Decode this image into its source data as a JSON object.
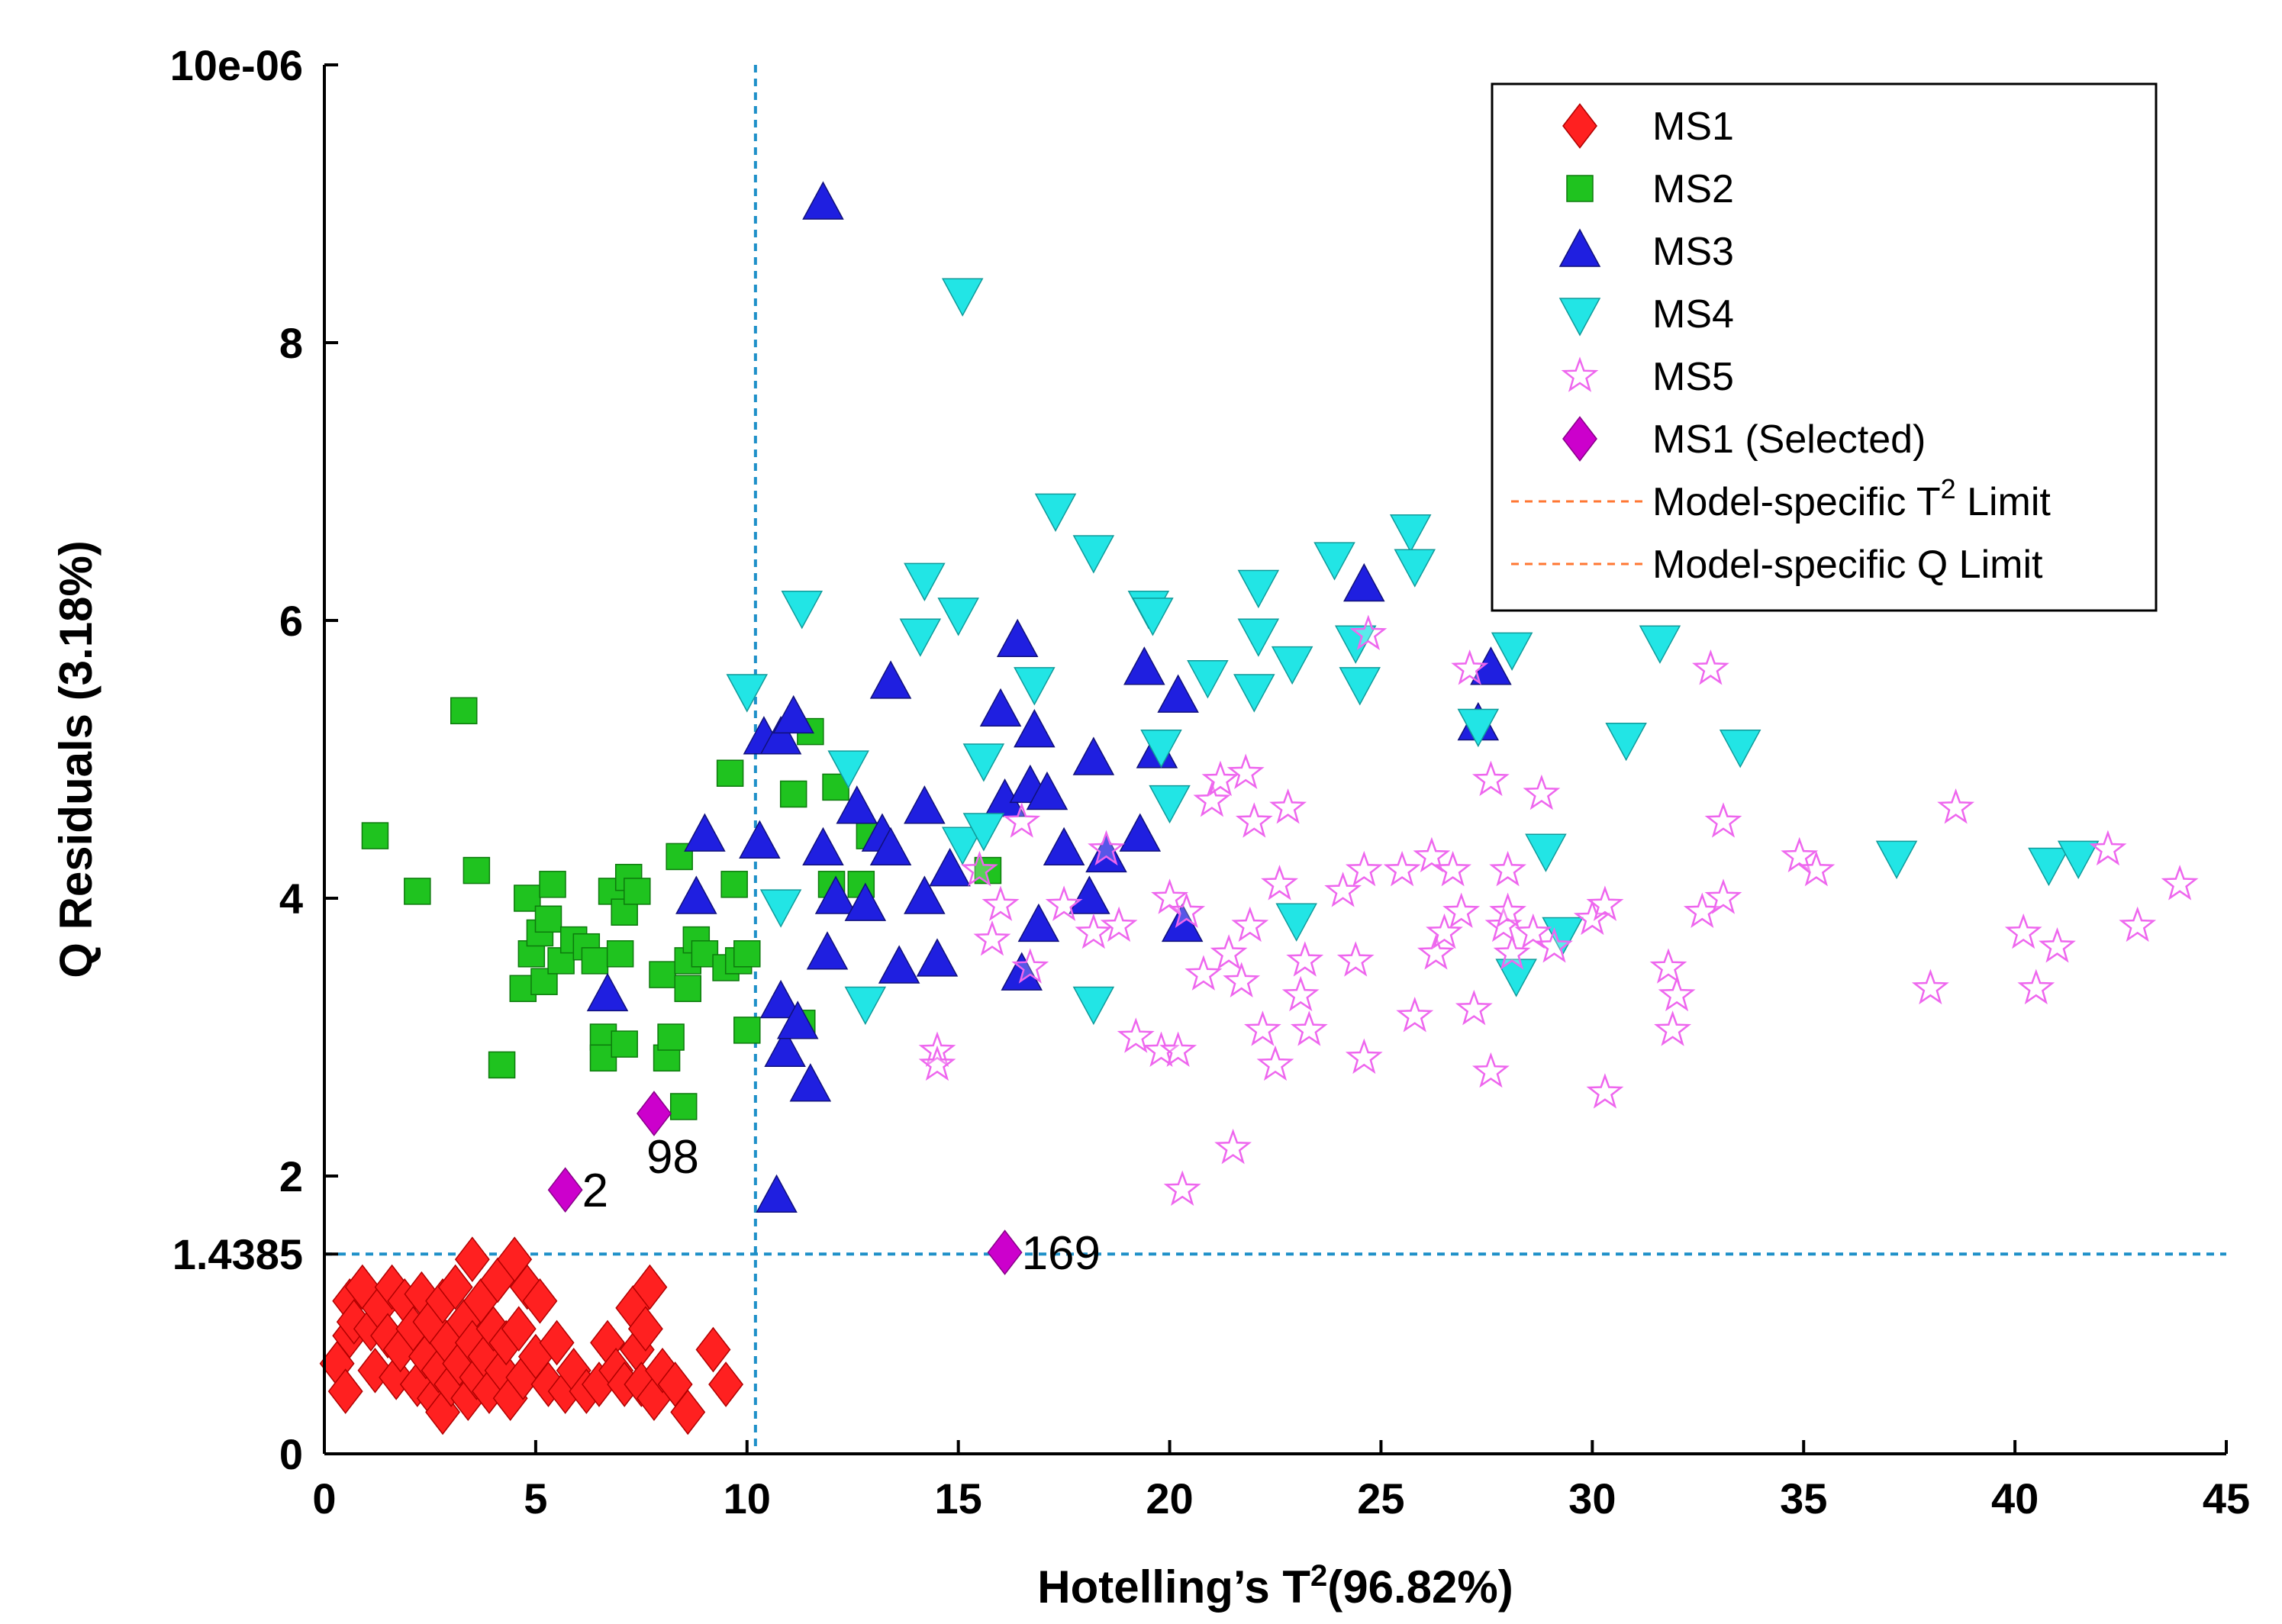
{
  "chart_data": {
    "type": "scatter",
    "xlabel": "Hotelling’s T",
    "xlabel_sup": "2",
    "xlabel_suffix": "(96.82%)",
    "ylabel": "Q Residuals (3.18%)",
    "xlim": [
      0,
      45
    ],
    "ylim": [
      0,
      10
    ],
    "x_ticks": [
      0,
      5,
      10,
      15,
      20,
      25,
      30,
      35,
      40,
      45
    ],
    "y_ticks": [
      0,
      2,
      4,
      6,
      8
    ],
    "y_tick_top_label": "10e-06",
    "y_extra_tick": {
      "value": 1.4385,
      "label": "1.4385"
    },
    "grid": false,
    "legend_position": "top-right",
    "limits": {
      "t2": 10.2,
      "q": 1.4385
    },
    "series": [
      {
        "name": "MS1",
        "marker": "diamond",
        "color": "#ff2020",
        "points": [
          [
            0.3,
            0.65
          ],
          [
            0.5,
            0.45
          ],
          [
            0.6,
            0.85
          ],
          [
            0.6,
            1.1
          ],
          [
            0.7,
            0.95
          ],
          [
            0.9,
            1.2
          ],
          [
            1.1,
            0.9
          ],
          [
            1.2,
            0.6
          ],
          [
            1.3,
            1.05
          ],
          [
            1.5,
            0.85
          ],
          [
            1.6,
            1.2
          ],
          [
            1.7,
            0.55
          ],
          [
            1.8,
            0.75
          ],
          [
            1.9,
            1.1
          ],
          [
            2.1,
            0.9
          ],
          [
            2.2,
            0.5
          ],
          [
            2.3,
            1.15
          ],
          [
            2.4,
            0.7
          ],
          [
            2.5,
            0.95
          ],
          [
            2.6,
            0.4
          ],
          [
            2.7,
            0.6
          ],
          [
            2.8,
            1.1
          ],
          [
            2.8,
            0.3
          ],
          [
            2.9,
            0.8
          ],
          [
            3.0,
            0.5
          ],
          [
            3.1,
            1.2
          ],
          [
            3.2,
            0.65
          ],
          [
            3.3,
            0.95
          ],
          [
            3.4,
            0.4
          ],
          [
            3.5,
            1.4
          ],
          [
            3.5,
            0.8
          ],
          [
            3.6,
            0.55
          ],
          [
            3.7,
            1.1
          ],
          [
            3.8,
            0.7
          ],
          [
            3.9,
            0.45
          ],
          [
            4.0,
            0.9
          ],
          [
            4.1,
            1.25
          ],
          [
            4.2,
            0.6
          ],
          [
            4.3,
            0.8
          ],
          [
            4.4,
            0.4
          ],
          [
            4.5,
            1.4
          ],
          [
            4.6,
            0.9
          ],
          [
            4.7,
            0.55
          ],
          [
            4.8,
            1.2
          ],
          [
            5.0,
            0.7
          ],
          [
            5.1,
            1.1
          ],
          [
            5.3,
            0.5
          ],
          [
            5.5,
            0.8
          ],
          [
            5.7,
            0.45
          ],
          [
            5.9,
            0.6
          ],
          [
            6.2,
            0.45
          ],
          [
            6.5,
            0.5
          ],
          [
            6.7,
            0.8
          ],
          [
            6.9,
            0.6
          ],
          [
            7.1,
            0.5
          ],
          [
            7.3,
            1.05
          ],
          [
            7.4,
            0.75
          ],
          [
            7.5,
            0.5
          ],
          [
            7.6,
            0.9
          ],
          [
            7.7,
            1.2
          ],
          [
            7.8,
            0.4
          ],
          [
            8.0,
            0.6
          ],
          [
            8.3,
            0.5
          ],
          [
            8.6,
            0.3
          ],
          [
            9.2,
            0.75
          ],
          [
            9.5,
            0.5
          ]
        ]
      },
      {
        "name": "MS2",
        "marker": "square",
        "color": "#1fc31f",
        "points": [
          [
            1.2,
            4.45
          ],
          [
            2.2,
            4.05
          ],
          [
            3.3,
            5.35
          ],
          [
            3.6,
            4.2
          ],
          [
            4.2,
            2.8
          ],
          [
            4.7,
            3.35
          ],
          [
            4.8,
            4.0
          ],
          [
            4.9,
            3.6
          ],
          [
            5.1,
            3.75
          ],
          [
            5.2,
            3.4
          ],
          [
            5.3,
            3.85
          ],
          [
            5.4,
            4.1
          ],
          [
            5.6,
            3.55
          ],
          [
            5.9,
            3.7
          ],
          [
            6.2,
            3.65
          ],
          [
            6.4,
            3.55
          ],
          [
            6.6,
            3.0
          ],
          [
            6.6,
            2.85
          ],
          [
            6.8,
            4.05
          ],
          [
            7.0,
            3.6
          ],
          [
            7.1,
            3.9
          ],
          [
            7.1,
            2.95
          ],
          [
            7.2,
            4.15
          ],
          [
            7.4,
            4.05
          ],
          [
            8.0,
            3.45
          ],
          [
            8.1,
            2.85
          ],
          [
            8.2,
            3.0
          ],
          [
            8.4,
            4.3
          ],
          [
            8.5,
            2.5
          ],
          [
            8.6,
            3.55
          ],
          [
            8.6,
            3.35
          ],
          [
            8.8,
            3.7
          ],
          [
            9.0,
            3.6
          ],
          [
            9.5,
            3.5
          ],
          [
            9.6,
            4.9
          ],
          [
            9.7,
            4.1
          ],
          [
            9.8,
            3.55
          ],
          [
            10.0,
            3.05
          ],
          [
            10.0,
            3.6
          ],
          [
            11.1,
            4.75
          ],
          [
            11.3,
            3.1
          ],
          [
            11.5,
            5.2
          ],
          [
            12.0,
            4.1
          ],
          [
            12.1,
            4.8
          ],
          [
            12.7,
            4.1
          ],
          [
            12.9,
            4.45
          ],
          [
            15.7,
            4.2
          ]
        ]
      },
      {
        "name": "MS3",
        "marker": "triangle-up",
        "color": "#1f1fe0",
        "points": [
          [
            6.7,
            3.3
          ],
          [
            8.8,
            4.0
          ],
          [
            9.0,
            4.45
          ],
          [
            10.3,
            4.4
          ],
          [
            10.4,
            5.15
          ],
          [
            10.7,
            1.85
          ],
          [
            10.8,
            5.15
          ],
          [
            10.8,
            3.25
          ],
          [
            10.9,
            2.9
          ],
          [
            11.1,
            5.3
          ],
          [
            11.2,
            3.1
          ],
          [
            11.5,
            2.65
          ],
          [
            11.8,
            9.0
          ],
          [
            11.8,
            4.35
          ],
          [
            11.9,
            3.6
          ],
          [
            12.1,
            4.0
          ],
          [
            12.6,
            4.65
          ],
          [
            12.8,
            3.95
          ],
          [
            13.2,
            4.45
          ],
          [
            13.4,
            4.35
          ],
          [
            13.4,
            5.55
          ],
          [
            13.6,
            3.5
          ],
          [
            14.2,
            4.65
          ],
          [
            14.2,
            4.0
          ],
          [
            14.5,
            3.55
          ],
          [
            14.8,
            4.2
          ],
          [
            16.0,
            5.35
          ],
          [
            16.1,
            4.7
          ],
          [
            16.4,
            5.85
          ],
          [
            16.5,
            3.45
          ],
          [
            16.7,
            4.8
          ],
          [
            16.8,
            5.2
          ],
          [
            16.9,
            3.8
          ],
          [
            17.1,
            4.75
          ],
          [
            17.5,
            4.35
          ],
          [
            18.1,
            4.0
          ],
          [
            18.2,
            5.0
          ],
          [
            18.5,
            4.3
          ],
          [
            19.3,
            4.45
          ],
          [
            19.4,
            5.65
          ],
          [
            19.7,
            5.05
          ],
          [
            20.2,
            5.45
          ],
          [
            20.3,
            3.8
          ],
          [
            24.6,
            6.25
          ],
          [
            27.3,
            5.25
          ],
          [
            27.6,
            5.65
          ]
        ]
      },
      {
        "name": "MS4",
        "marker": "triangle-down",
        "color": "#22e5e5",
        "points": [
          [
            10.0,
            5.5
          ],
          [
            10.8,
            3.95
          ],
          [
            11.3,
            6.1
          ],
          [
            12.4,
            4.95
          ],
          [
            12.8,
            3.25
          ],
          [
            14.1,
            5.9
          ],
          [
            14.2,
            6.3
          ],
          [
            15.0,
            6.05
          ],
          [
            15.1,
            8.35
          ],
          [
            15.1,
            4.4
          ],
          [
            15.6,
            4.5
          ],
          [
            15.6,
            5.0
          ],
          [
            16.8,
            5.55
          ],
          [
            17.3,
            6.8
          ],
          [
            18.2,
            6.5
          ],
          [
            18.2,
            3.25
          ],
          [
            19.5,
            6.1
          ],
          [
            19.6,
            6.05
          ],
          [
            19.8,
            5.1
          ],
          [
            20.0,
            4.7
          ],
          [
            20.9,
            5.6
          ],
          [
            22.0,
            5.5
          ],
          [
            22.1,
            6.25
          ],
          [
            22.1,
            5.9
          ],
          [
            22.9,
            5.7
          ],
          [
            23.0,
            3.85
          ],
          [
            23.9,
            6.45
          ],
          [
            24.4,
            5.85
          ],
          [
            24.5,
            5.55
          ],
          [
            25.7,
            6.65
          ],
          [
            25.8,
            6.4
          ],
          [
            27.3,
            5.25
          ],
          [
            28.1,
            5.8
          ],
          [
            28.2,
            3.45
          ],
          [
            28.9,
            4.35
          ],
          [
            29.3,
            3.75
          ],
          [
            30.8,
            5.15
          ],
          [
            31.6,
            5.85
          ],
          [
            33.5,
            5.1
          ],
          [
            37.2,
            4.3
          ],
          [
            40.8,
            4.25
          ],
          [
            41.5,
            4.3
          ]
        ]
      },
      {
        "name": "MS5",
        "marker": "star",
        "color": "#ee66ee",
        "points": [
          [
            14.5,
            2.9
          ],
          [
            14.5,
            2.8
          ],
          [
            15.5,
            4.2
          ],
          [
            15.8,
            3.7
          ],
          [
            16.0,
            3.95
          ],
          [
            16.5,
            4.55
          ],
          [
            16.7,
            3.5
          ],
          [
            17.5,
            3.95
          ],
          [
            18.2,
            3.75
          ],
          [
            18.5,
            4.35
          ],
          [
            18.8,
            3.8
          ],
          [
            19.2,
            3.0
          ],
          [
            19.8,
            2.9
          ],
          [
            20.0,
            4.0
          ],
          [
            20.2,
            2.9
          ],
          [
            20.3,
            1.9
          ],
          [
            20.4,
            3.9
          ],
          [
            20.8,
            3.45
          ],
          [
            21.0,
            4.7
          ],
          [
            21.2,
            4.85
          ],
          [
            21.4,
            3.6
          ],
          [
            21.5,
            2.2
          ],
          [
            21.7,
            3.4
          ],
          [
            21.8,
            4.9
          ],
          [
            21.9,
            3.8
          ],
          [
            22.0,
            4.55
          ],
          [
            22.2,
            3.05
          ],
          [
            22.5,
            2.8
          ],
          [
            22.6,
            4.1
          ],
          [
            22.8,
            4.65
          ],
          [
            23.1,
            3.3
          ],
          [
            23.2,
            3.55
          ],
          [
            23.3,
            3.05
          ],
          [
            24.1,
            4.05
          ],
          [
            24.4,
            3.55
          ],
          [
            24.6,
            4.2
          ],
          [
            24.6,
            2.85
          ],
          [
            24.7,
            5.9
          ],
          [
            25.5,
            4.2
          ],
          [
            25.8,
            3.15
          ],
          [
            26.2,
            4.3
          ],
          [
            26.3,
            3.6
          ],
          [
            26.5,
            3.75
          ],
          [
            26.7,
            4.2
          ],
          [
            26.9,
            3.9
          ],
          [
            27.1,
            5.65
          ],
          [
            27.2,
            3.2
          ],
          [
            27.6,
            4.85
          ],
          [
            27.6,
            2.75
          ],
          [
            27.9,
            3.8
          ],
          [
            28.0,
            4.2
          ],
          [
            28.0,
            3.9
          ],
          [
            28.1,
            3.6
          ],
          [
            28.6,
            3.75
          ],
          [
            28.8,
            4.75
          ],
          [
            29.1,
            3.65
          ],
          [
            30.0,
            3.85
          ],
          [
            30.3,
            3.95
          ],
          [
            30.3,
            2.6
          ],
          [
            31.8,
            3.5
          ],
          [
            31.9,
            3.05
          ],
          [
            32.0,
            3.3
          ],
          [
            32.6,
            3.9
          ],
          [
            32.8,
            5.65
          ],
          [
            33.1,
            4.0
          ],
          [
            33.1,
            4.55
          ],
          [
            34.9,
            4.3
          ],
          [
            35.3,
            4.2
          ],
          [
            38.0,
            3.35
          ],
          [
            38.6,
            4.65
          ],
          [
            40.2,
            3.75
          ],
          [
            40.5,
            3.35
          ],
          [
            41.0,
            3.65
          ],
          [
            42.2,
            4.35
          ],
          [
            42.9,
            3.8
          ],
          [
            43.9,
            4.1
          ]
        ]
      },
      {
        "name": "MS1 (Selected)",
        "marker": "diamond",
        "color": "#cc00cc",
        "points": [
          [
            7.8,
            2.45
          ],
          [
            5.7,
            1.9
          ],
          [
            16.1,
            1.45
          ]
        ]
      }
    ],
    "annotations": [
      {
        "label": "98",
        "x": 7.8,
        "y": 2.45
      },
      {
        "label": "2",
        "x": 5.7,
        "y": 1.9
      },
      {
        "label": "169",
        "x": 16.1,
        "y": 1.45
      }
    ],
    "legend": {
      "entries": [
        "MS1",
        "MS2",
        "MS3",
        "MS4",
        "MS5",
        "MS1 (Selected)"
      ],
      "limit_t2_prefix": "Model-specific T",
      "limit_t2_sup": "2",
      "limit_t2_suffix": " Limit",
      "limit_q": "Model-specific Q Limit",
      "limit_line_color": "#ff7733"
    },
    "limit_line_color": "#1e90c8"
  }
}
